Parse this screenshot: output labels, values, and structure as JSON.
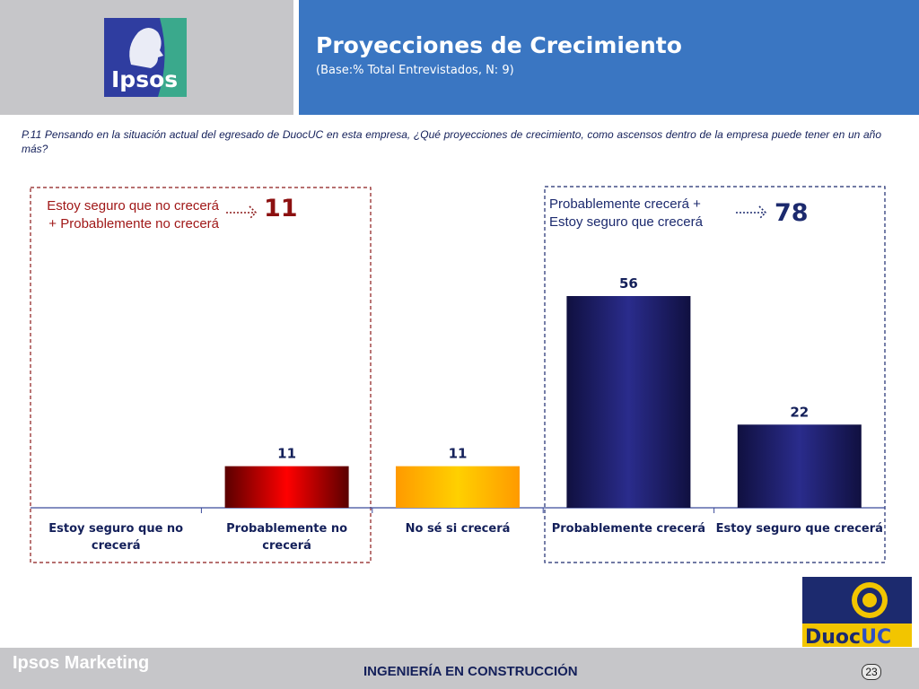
{
  "header": {
    "logo_text": "Ipsos",
    "title": "Proyecciones de Crecimiento",
    "subtitle": "(Base:% Total Entrevistados, N: 9)"
  },
  "question": "P.11 Pensando en la situación actual del egresado de DuocUC en  esta empresa, ¿Qué  proyecciones de crecimiento, como ascensos dentro de la empresa  puede tener en un año más?",
  "groups": {
    "left": {
      "label": "Estoy seguro que no crecerá + Probablemente no crecerá",
      "total": "11",
      "color": "#a01818"
    },
    "right": {
      "label": "Probablemente crecerá + Estoy seguro que crecerá",
      "total": "78",
      "color": "#1c2a6e"
    }
  },
  "chart_data": {
    "type": "bar",
    "categories": [
      "Estoy seguro que no crecerá",
      "Probablemente no crecerá",
      "No sé si crecerá",
      "Probablemente crecerá",
      "Estoy seguro que crecerá"
    ],
    "category_lines": [
      [
        "Estoy seguro que no",
        "crecerá"
      ],
      [
        "Probablemente no",
        "crecerá"
      ],
      [
        "No sé si crecerá"
      ],
      [
        "Probablemente crecerá"
      ],
      [
        "Estoy seguro que crecerá"
      ]
    ],
    "values": [
      0,
      11,
      11,
      56,
      22
    ],
    "data_labels": [
      "",
      "11",
      "11",
      "56",
      "22"
    ],
    "colors": [
      "#ee0000",
      "#ee0000",
      "#ffc000",
      "#1f2070",
      "#1f2070"
    ],
    "title": "",
    "xlabel": "",
    "ylabel": "",
    "ylim": [
      0,
      56
    ],
    "grid": false,
    "legend": "none"
  },
  "footer": {
    "brand": "Ipsos Marketing",
    "career": "INGENIERÍA EN CONSTRUCCIÓN",
    "page": "23"
  },
  "duoc_logo": {
    "text_dark": "Duoc",
    "text_accent": "UC",
    "accent_color": "#f2c500",
    "background": "#1c2a6e"
  }
}
